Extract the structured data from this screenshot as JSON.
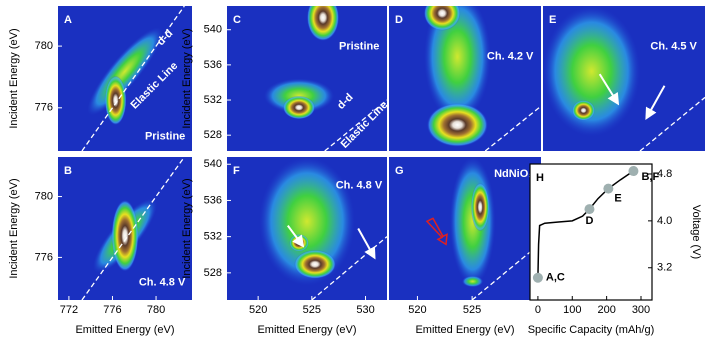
{
  "chart_data": [
    {
      "type": "heatmap",
      "label": "A",
      "annotations": [
        "Pristine",
        "Elastic Line",
        "d-d"
      ],
      "ylabel": "Incident Energy (eV)",
      "xlim": [
        771,
        783.3
      ],
      "ylim": [
        773.2,
        782.6
      ],
      "yticks": [
        776,
        780
      ]
    },
    {
      "type": "heatmap",
      "label": "B",
      "annotations": [
        "Ch. 4.8 V"
      ],
      "xlabel": "Emitted Energy (eV)",
      "ylabel": "Incident Energy (eV)",
      "xlim": [
        771,
        783.3
      ],
      "ylim": [
        773.2,
        782.6
      ],
      "xticks": [
        772,
        776,
        780
      ],
      "yticks": [
        776,
        780
      ]
    },
    {
      "type": "heatmap",
      "label": "C",
      "annotations": [
        "Pristine",
        "d-d",
        "Elastic Line"
      ],
      "ylabel": "Incident Energy (eV)",
      "xlim": [
        517.1,
        532
      ],
      "ylim": [
        526.2,
        542.7
      ],
      "yticks": [
        528,
        532,
        536,
        540
      ]
    },
    {
      "type": "heatmap",
      "label": "D",
      "annotations": [
        "Ch. 4.2 V"
      ],
      "xlim": [
        517.4,
        531.3
      ],
      "ylim": [
        526.2,
        542.7
      ]
    },
    {
      "type": "heatmap",
      "label": "E",
      "annotations": [
        "Ch. 4.5 V"
      ],
      "xlim": [
        517.1,
        532.3
      ],
      "ylim": [
        526.2,
        542.7
      ]
    },
    {
      "type": "heatmap",
      "label": "F",
      "annotations": [
        "Ch. 4.8 V"
      ],
      "xlabel": "Emitted Energy (eV)",
      "ylabel": "Incident Energy (eV)",
      "xlim": [
        517.1,
        532
      ],
      "ylim": [
        525,
        540.8
      ],
      "xticks": [
        520,
        525,
        530
      ],
      "yticks": [
        528,
        532,
        536,
        540
      ]
    },
    {
      "type": "heatmap",
      "label": "G",
      "annotations": [
        "NdNiO₃"
      ],
      "xlabel": "Emitted Energy (eV)",
      "xlim": [
        517.4,
        531.3
      ],
      "ylim": [
        525,
        540.8
      ],
      "xticks": [
        520,
        525
      ]
    },
    {
      "type": "line",
      "label": "H",
      "xlabel": "Specific Capacity (mAh/g)",
      "ylabel": "Voltage (V)",
      "xlim": [
        -23,
        332
      ],
      "ylim": [
        2.65,
        4.97
      ],
      "xticks": [
        0,
        100,
        200,
        300
      ],
      "yticks": [
        3.2,
        {
          "value": 4,
          "label": "4.0"
        },
        4.8
      ],
      "x": [
        0,
        2,
        5,
        20,
        60,
        100,
        130,
        150,
        175,
        205,
        240,
        278
      ],
      "series": [
        {
          "color": "#000000",
          "values": [
            3.03,
            3.6,
            3.92,
            3.96,
            3.98,
            4.0,
            4.08,
            4.2,
            4.38,
            4.55,
            4.7,
            4.85
          ]
        }
      ],
      "points": {
        "color": "#9fb0b0",
        "x": [
          0,
          150,
          205,
          278
        ],
        "values": [
          3.03,
          4.2,
          4.55,
          4.85
        ],
        "labels": [
          "A,C",
          "D",
          "E",
          "B,F"
        ]
      }
    }
  ]
}
